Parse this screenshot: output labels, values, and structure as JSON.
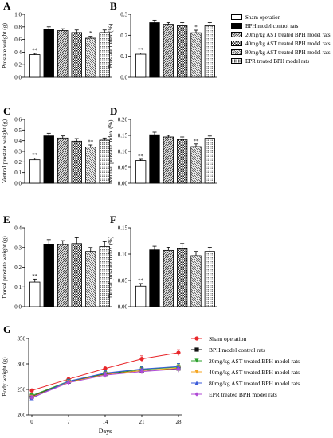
{
  "colors": {
    "sham": "#ffffff",
    "control": "#000000",
    "group_20": "#b8b8b8",
    "group_40": "#6e6e6e",
    "group_80": "#cfcfcf",
    "group_epr": "#9a9a9a",
    "line_sham": "#e8262a",
    "line_control": "#111111",
    "line_20": "#2ca02c",
    "line_40": "#f5a623",
    "line_80": "#3b5bd9",
    "line_epr": "#b04ad6"
  },
  "legend_bars": [
    {
      "label": "Sham operation",
      "fill": "#ffffff",
      "pattern": "none"
    },
    {
      "label": "BPH model control rats",
      "fill": "#000000",
      "pattern": "none"
    },
    {
      "label": "20mg/kg AST treated BPH model rats",
      "fill": "#b8b8b8",
      "pattern": "diag"
    },
    {
      "label": "40mg/kg AST treated BPH model rats",
      "fill": "#6e6e6e",
      "pattern": "check"
    },
    {
      "label": "80mg/kg AST treated BPH model rats",
      "fill": "#cfcfcf",
      "pattern": "diag2"
    },
    {
      "label": "EPR treated BPH model rats",
      "fill": "#9a9a9a",
      "pattern": "dots"
    }
  ],
  "legend_lines": [
    {
      "label": "Sham operation",
      "color": "#e8262a",
      "marker": "circle"
    },
    {
      "label": "BPH model control rats",
      "color": "#111111",
      "marker": "square"
    },
    {
      "label": "20mg/kg AST treated BPH model rats",
      "color": "#2ca02c",
      "marker": "triangle-down"
    },
    {
      "label": "40mg/kg AST treated BPH model rats",
      "color": "#f5a623",
      "marker": "triangle-down"
    },
    {
      "label": "80mg/kg AST treated BPH model rats",
      "color": "#3b5bd9",
      "marker": "triangle-up"
    },
    {
      "label": "EPR treated BPH model rats",
      "color": "#b04ad6",
      "marker": "diamond"
    }
  ],
  "chart_data": [
    {
      "panel": "A",
      "type": "bar",
      "ylabel": "Prostate weight (g)",
      "ylim": [
        0,
        1.0
      ],
      "yticks": [
        "0.0",
        "0.2",
        "0.4",
        "0.6",
        "0.8",
        "1.0"
      ],
      "values": [
        0.36,
        0.76,
        0.74,
        0.71,
        0.62,
        0.71
      ],
      "errors": [
        0.02,
        0.04,
        0.03,
        0.04,
        0.03,
        0.04
      ],
      "annotations": [
        "**",
        "",
        "",
        "",
        "*",
        ""
      ]
    },
    {
      "panel": "B",
      "type": "bar",
      "ylabel": "Prostate index (%)",
      "ylim": [
        0,
        0.3
      ],
      "yticks": [
        "0.0",
        "0.1",
        "0.2",
        "0.3"
      ],
      "values": [
        0.11,
        0.26,
        0.252,
        0.245,
        0.212,
        0.245
      ],
      "errors": [
        0.006,
        0.012,
        0.008,
        0.015,
        0.012,
        0.015
      ],
      "annotations": [
        "**",
        "",
        "",
        "",
        "*",
        ""
      ]
    },
    {
      "panel": "C",
      "type": "bar",
      "ylabel": "Ventral prostate weight (g)",
      "ylim": [
        0,
        0.6
      ],
      "yticks": [
        "0.0",
        "0.1",
        "0.2",
        "0.3",
        "0.4",
        "0.5",
        "0.6"
      ],
      "values": [
        0.22,
        0.445,
        0.425,
        0.395,
        0.34,
        0.405
      ],
      "errors": [
        0.015,
        0.025,
        0.02,
        0.025,
        0.02,
        0.02
      ],
      "annotations": [
        "**",
        "",
        "",
        "",
        "**",
        ""
      ]
    },
    {
      "panel": "D",
      "type": "bar",
      "ylabel": "Ventral prostate index (%)",
      "ylim": [
        0,
        0.2
      ],
      "yticks": [
        "0.00",
        "0.05",
        "0.10",
        "0.15",
        "0.20"
      ],
      "values": [
        0.071,
        0.152,
        0.145,
        0.137,
        0.115,
        0.141
      ],
      "errors": [
        0.004,
        0.008,
        0.005,
        0.008,
        0.008,
        0.007
      ],
      "annotations": [
        "**",
        "",
        "",
        "",
        "**",
        ""
      ]
    },
    {
      "panel": "E",
      "type": "bar",
      "ylabel": "Dorsal prostate weight (g)",
      "ylim": [
        0,
        0.4
      ],
      "yticks": [
        "0.0",
        "0.1",
        "0.2",
        "0.3",
        "0.4"
      ],
      "values": [
        0.125,
        0.315,
        0.315,
        0.32,
        0.28,
        0.305
      ],
      "errors": [
        0.015,
        0.025,
        0.02,
        0.03,
        0.02,
        0.025
      ],
      "annotations": [
        "**",
        "",
        "",
        "",
        "",
        ""
      ]
    },
    {
      "panel": "F",
      "type": "bar",
      "ylabel": "Dorsal prostate index (%)",
      "ylim": [
        0,
        0.15
      ],
      "yticks": [
        "0.00",
        "0.05",
        "0.10",
        "0.15"
      ],
      "values": [
        0.039,
        0.108,
        0.107,
        0.11,
        0.097,
        0.105
      ],
      "errors": [
        0.005,
        0.007,
        0.006,
        0.01,
        0.008,
        0.008
      ],
      "annotations": [
        "**",
        "",
        "",
        "",
        "",
        ""
      ]
    },
    {
      "panel": "G",
      "type": "line",
      "xlabel": "Days",
      "ylabel": "Body weight (g)",
      "x": [
        0,
        7,
        14,
        21,
        28
      ],
      "xticks": [
        "0",
        "7",
        "14",
        "21",
        "28"
      ],
      "ylim": [
        200,
        350
      ],
      "yticks": [
        "200",
        "250",
        "300",
        "350"
      ],
      "series": [
        {
          "name": "Sham operation",
          "values": [
            248,
            270,
            291,
            310,
            322
          ],
          "errors": [
            3,
            4,
            5,
            6,
            6
          ]
        },
        {
          "name": "BPH model control rats",
          "values": [
            236,
            265,
            280,
            287,
            291
          ],
          "errors": [
            4,
            4,
            5,
            6,
            7
          ]
        },
        {
          "name": "20mg/kg AST treated BPH model rats",
          "values": [
            238,
            266,
            281,
            289,
            294
          ],
          "errors": [
            4,
            4,
            5,
            5,
            6
          ]
        },
        {
          "name": "40mg/kg AST treated BPH model rats",
          "values": [
            235,
            264,
            279,
            287,
            292
          ],
          "errors": [
            4,
            4,
            5,
            5,
            6
          ]
        },
        {
          "name": "80mg/kg AST treated BPH model rats",
          "values": [
            233,
            266,
            282,
            290,
            295
          ],
          "errors": [
            4,
            4,
            5,
            5,
            6
          ]
        },
        {
          "name": "EPR treated BPH model rats",
          "values": [
            234,
            263,
            278,
            285,
            290
          ],
          "errors": [
            4,
            4,
            5,
            5,
            6
          ]
        }
      ]
    }
  ]
}
